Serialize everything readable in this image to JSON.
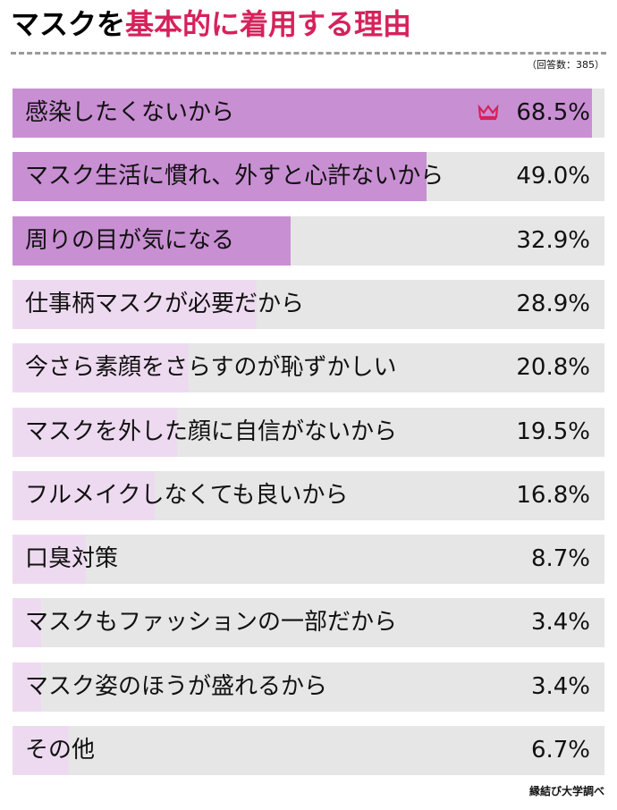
{
  "title": {
    "part1": "マスクを",
    "part2": "基本的に着用する理由"
  },
  "note": "（回答数：385）",
  "source": "縁結び大学調べ",
  "colors": {
    "title_accent": "#d6225b",
    "bar_fill_top": "#c98fd3",
    "bar_fill_other": "#eedaf0",
    "bar_track": "#e6e6e6",
    "crown": "#d6225b"
  },
  "icons": {
    "top_item": "crown-icon"
  },
  "chart_data": {
    "type": "bar",
    "orientation": "horizontal",
    "categories": [
      "感染したくないから",
      "マスク生活に慣れ、外すと心許ないから",
      "周りの目が気になる",
      "仕事柄マスクが必要だから",
      "今さら素顔をさらすのが恥ずかしい",
      "マスクを外した顔に自信がないから",
      "フルメイクしなくても良いから",
      "口臭対策",
      "マスクもファッションの一部だから",
      "マスク姿のほうが盛れるから",
      "その他"
    ],
    "values": [
      68.5,
      49.0,
      32.9,
      28.9,
      20.8,
      19.5,
      16.8,
      8.7,
      3.4,
      3.4,
      6.7
    ],
    "value_labels": [
      "68.5%",
      "49.0%",
      "32.9%",
      "28.9%",
      "20.8%",
      "19.5%",
      "16.8%",
      "8.7%",
      "3.4%",
      "3.4%",
      "6.7%"
    ],
    "highlight_count": 3,
    "xlim": [
      0,
      70
    ]
  }
}
